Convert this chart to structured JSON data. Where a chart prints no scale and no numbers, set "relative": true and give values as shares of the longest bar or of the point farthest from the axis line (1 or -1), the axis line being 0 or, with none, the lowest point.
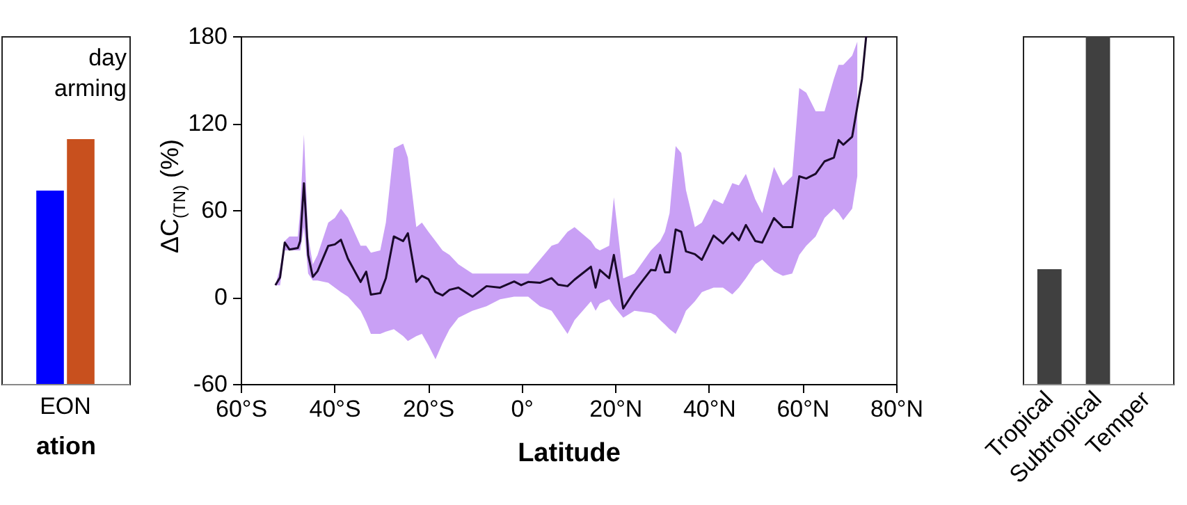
{
  "chart_data": [
    {
      "type": "bar",
      "categories": [
        "EON"
      ],
      "xlabel": "ation",
      "annotations": [
        "day",
        "arming"
      ],
      "relative": true,
      "series": [
        {
          "color": "#0000ff",
          "values": [
            0.79
          ]
        },
        {
          "color": "#c8501e",
          "values": [
            1
          ]
        }
      ]
    },
    {
      "type": "line",
      "xlabel": "Latitude",
      "ylabel": "ΔC$_{(TN)}$ (%)",
      "xlim": [
        -60,
        80
      ],
      "ylim": [
        -60,
        180
      ],
      "xticks": [
        {
          "value": -60,
          "label": "60°S"
        },
        {
          "value": -40,
          "label": "40°S"
        },
        {
          "value": -20,
          "label": "20°S"
        },
        {
          "value": 0,
          "label": "0°"
        },
        {
          "value": 20,
          "label": "20°N"
        },
        {
          "value": 40,
          "label": "40°N"
        },
        {
          "value": 60,
          "label": "60°N"
        },
        {
          "value": 80,
          "label": "80°N"
        }
      ],
      "yticks": [
        -60,
        0,
        60,
        120,
        180
      ],
      "grid": false,
      "series": [
        {
          "color": "#1a0a2a",
          "x": [
            -52.6,
            -51.6,
            -50.6,
            -49.6,
            -47.8,
            -47.3,
            -46.5,
            -45.6,
            -44.6,
            -43.6,
            -41.3,
            -39.9,
            -38.6,
            -37.1,
            -34.4,
            -33.2,
            -32.2,
            -30.2,
            -29,
            -27.3,
            -25.3,
            -24.3,
            -22.5,
            -21.3,
            -19.9,
            -18.4,
            -16.9,
            -15.4,
            -13.5,
            -10.5,
            -7.5,
            -4.6,
            -1.6,
            -0.1,
            1.4,
            3.9,
            6.4,
            7.8,
            9.8,
            11.3,
            14.8,
            15.8,
            16.7,
            18.7,
            19.7,
            21.7,
            24.1,
            27.6,
            28.6,
            29.6,
            30.6,
            31.6,
            32.9,
            34.1,
            35.1,
            37,
            38.5,
            41,
            43,
            45,
            46.4,
            47.9,
            49.9,
            51.4,
            53.9,
            55.8,
            57.8,
            59.3,
            60.8,
            62.8,
            64.7,
            66.7,
            67.7,
            68.7,
            70.6,
            71.7,
            72.7,
            73.6
          ],
          "values": [
            8.2,
            13.6,
            37.6,
            32.8,
            33.8,
            38.6,
            78.5,
            29,
            13.9,
            17.8,
            35.3,
            36.3,
            39.5,
            26.4,
            10.4,
            17.5,
            1.7,
            2.7,
            13,
            41.8,
            38.6,
            44,
            10.4,
            14.6,
            12.3,
            3.4,
            1.1,
            5,
            6.5,
            0.2,
            7.5,
            6.5,
            10.7,
            8.2,
            10.4,
            9.8,
            13,
            8.5,
            7.5,
            12,
            20.9,
            6.5,
            18.7,
            13,
            29,
            -7.9,
            4,
            18.7,
            18.4,
            29,
            17.1,
            17.1,
            46.6,
            45,
            31.5,
            29.6,
            25.7,
            42.4,
            37,
            44.3,
            39.2,
            49.7,
            38.6,
            37.6,
            54.5,
            48.2,
            48.2,
            83.3,
            81.8,
            85,
            93.6,
            96.2,
            108.3,
            105.1,
            110.6,
            131.3,
            150.5,
            180
          ],
          "upper": [
            8.2,
            20,
            38.6,
            41.8,
            41.8,
            60,
            112.2,
            41.8,
            22.6,
            29,
            51.4,
            54.6,
            61,
            54.6,
            35.4,
            35.4,
            30.6,
            32.2,
            51.4,
            102.6,
            105.8,
            96.2,
            48.2,
            51.4,
            45,
            38.6,
            32.2,
            29,
            22.6,
            16.2,
            16.2,
            16.2,
            16.2,
            16.2,
            16.2,
            25.8,
            35.4,
            37,
            45,
            48.2,
            38.6,
            33.8,
            32.2,
            35.4,
            68.9,
            12.9,
            16.2,
            32.2,
            35.4,
            38.6,
            45,
            57.8,
            104.2,
            99.4,
            73.8,
            48.2,
            51.4,
            67.4,
            64.2,
            78.6,
            77,
            85,
            67.4,
            57.8,
            89.8,
            77,
            83.4,
            144.2,
            141,
            128.2,
            128.2,
            150.6,
            160.2,
            160.2,
            166.6,
            176.2,
            null,
            null
          ],
          "lower": [
            8.2,
            8,
            32.2,
            32.2,
            32.2,
            32.2,
            48.2,
            16.2,
            11.4,
            11.4,
            9.8,
            6.5,
            3.4,
            0.2,
            -9.5,
            -17.4,
            -25.4,
            -25.4,
            -23.9,
            -22.2,
            -27,
            -30.3,
            -27,
            -25.4,
            -33.4,
            -43,
            -31.8,
            -22.2,
            -14.3,
            -9.5,
            -6.3,
            -1.5,
            0.2,
            0.2,
            0.2,
            -6.3,
            -9.5,
            -15.9,
            -25.4,
            -15.9,
            -3,
            -9.5,
            -4.6,
            -1.5,
            -6.3,
            -14.3,
            -9.5,
            -11,
            -12.6,
            -15.9,
            -19,
            -22.2,
            -25.4,
            -17.4,
            -9.5,
            -3,
            3.4,
            6.5,
            6.5,
            1.8,
            6.5,
            13,
            22.6,
            25.8,
            17.8,
            14.6,
            16.2,
            29,
            35.4,
            41.8,
            54.6,
            61,
            57.8,
            53,
            61,
            83.4,
            null,
            null
          ]
        }
      ]
    },
    {
      "type": "bar",
      "categories": [
        "Tropical",
        "Subtropical",
        "Temper"
      ],
      "relative": true,
      "series": [
        {
          "color": "#404040",
          "values": [
            0.33,
            1,
            null
          ]
        }
      ]
    }
  ]
}
